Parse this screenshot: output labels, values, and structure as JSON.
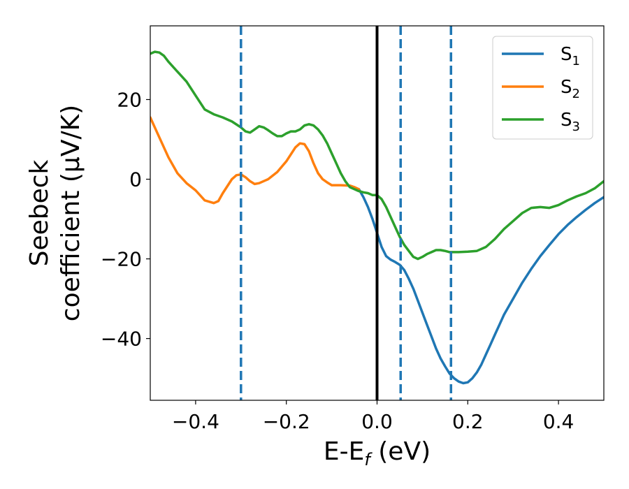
{
  "chart_data": {
    "type": "line",
    "xlabel": "E-E",
    "xlabel_sub": "f",
    "xlabel_unit": " (eV)",
    "ylabel_line1": "Seebeck",
    "ylabel_line2": "coefficient  (μV/K)",
    "xlim": [
      -0.5,
      0.5
    ],
    "ylim": [
      -55.5,
      38.5
    ],
    "xticks": [
      -0.4,
      -0.2,
      0.0,
      0.2,
      0.4
    ],
    "xtick_labels": [
      "−0.4",
      "−0.2",
      "0.0",
      "0.2",
      "0.4"
    ],
    "yticks": [
      -40,
      -20,
      0,
      20
    ],
    "ytick_labels": [
      "−40",
      "−20",
      "0",
      "20"
    ],
    "grid": false,
    "legend_position": "top-right",
    "fermi_line_x": 0.0,
    "dashed_lines_x": [
      -0.3,
      0.052,
      0.163
    ],
    "series": [
      {
        "name": "S",
        "name_sub": "1",
        "color": "#1f77b4",
        "x": [
          -0.04,
          -0.03,
          -0.02,
          -0.01,
          0.0,
          0.01,
          0.02,
          0.03,
          0.04,
          0.05,
          0.06,
          0.07,
          0.08,
          0.09,
          0.1,
          0.11,
          0.12,
          0.13,
          0.14,
          0.15,
          0.16,
          0.17,
          0.18,
          0.19,
          0.2,
          0.21,
          0.22,
          0.23,
          0.24,
          0.25,
          0.26,
          0.27,
          0.28,
          0.3,
          0.32,
          0.34,
          0.36,
          0.38,
          0.4,
          0.42,
          0.44,
          0.46,
          0.48,
          0.5
        ],
        "y": [
          -2.5,
          -4.5,
          -7.0,
          -10.0,
          -13.5,
          -17.0,
          -19.3,
          -20.2,
          -20.8,
          -21.5,
          -22.8,
          -25.0,
          -27.5,
          -30.5,
          -33.5,
          -36.5,
          -39.5,
          -42.5,
          -45.0,
          -47.0,
          -48.8,
          -50.0,
          -50.8,
          -51.2,
          -51.0,
          -50.0,
          -48.5,
          -46.5,
          -44.0,
          -41.5,
          -39.0,
          -36.5,
          -34.0,
          -30.0,
          -26.0,
          -22.5,
          -19.3,
          -16.5,
          -13.8,
          -11.5,
          -9.5,
          -7.7,
          -6.0,
          -4.5
        ]
      },
      {
        "name": "S",
        "name_sub": "2",
        "color": "#ff7f0e",
        "x": [
          -0.5,
          -0.48,
          -0.46,
          -0.44,
          -0.42,
          -0.4,
          -0.38,
          -0.36,
          -0.35,
          -0.34,
          -0.32,
          -0.31,
          -0.3,
          -0.29,
          -0.28,
          -0.27,
          -0.26,
          -0.24,
          -0.22,
          -0.2,
          -0.18,
          -0.17,
          -0.16,
          -0.15,
          -0.14,
          -0.13,
          -0.12,
          -0.11,
          -0.1,
          -0.09,
          -0.08,
          -0.06,
          -0.05,
          -0.04
        ],
        "y": [
          15.5,
          10.5,
          5.5,
          1.5,
          -1.0,
          -2.8,
          -5.3,
          -6.0,
          -5.5,
          -3.5,
          0.0,
          1.0,
          1.2,
          0.5,
          -0.5,
          -1.2,
          -1.0,
          0.0,
          1.8,
          4.5,
          8.0,
          9.0,
          8.8,
          7.0,
          4.0,
          1.5,
          0.0,
          -0.8,
          -1.5,
          -1.5,
          -1.5,
          -1.6,
          -2.0,
          -2.5
        ]
      },
      {
        "name": "S",
        "name_sub": "3",
        "color": "#2ca02c",
        "x": [
          -0.5,
          -0.49,
          -0.48,
          -0.47,
          -0.46,
          -0.44,
          -0.42,
          -0.4,
          -0.38,
          -0.36,
          -0.34,
          -0.32,
          -0.3,
          -0.29,
          -0.28,
          -0.27,
          -0.26,
          -0.25,
          -0.24,
          -0.23,
          -0.22,
          -0.21,
          -0.2,
          -0.19,
          -0.18,
          -0.17,
          -0.16,
          -0.15,
          -0.14,
          -0.13,
          -0.12,
          -0.11,
          -0.1,
          -0.09,
          -0.08,
          -0.07,
          -0.06,
          -0.05,
          -0.04,
          -0.03,
          -0.02,
          -0.01,
          0.0,
          0.01,
          0.02,
          0.03,
          0.04,
          0.05,
          0.06,
          0.07,
          0.08,
          0.09,
          0.1,
          0.11,
          0.12,
          0.13,
          0.14,
          0.15,
          0.16,
          0.18,
          0.2,
          0.22,
          0.24,
          0.26,
          0.28,
          0.3,
          0.32,
          0.34,
          0.36,
          0.38,
          0.4,
          0.42,
          0.44,
          0.46,
          0.48,
          0.5
        ],
        "y": [
          31.5,
          32.0,
          31.8,
          31.0,
          29.5,
          27.0,
          24.5,
          21.0,
          17.5,
          16.3,
          15.5,
          14.5,
          13.0,
          12.0,
          11.7,
          12.5,
          13.3,
          13.0,
          12.3,
          11.5,
          10.8,
          10.8,
          11.5,
          12.0,
          12.0,
          12.5,
          13.5,
          13.8,
          13.5,
          12.5,
          11.0,
          9.0,
          6.5,
          4.0,
          1.5,
          -0.5,
          -2.0,
          -2.5,
          -3.0,
          -3.3,
          -3.5,
          -4.0,
          -4.0,
          -5.0,
          -7.0,
          -9.5,
          -12.0,
          -14.5,
          -16.5,
          -18.0,
          -19.5,
          -20.0,
          -19.5,
          -18.8,
          -18.3,
          -17.8,
          -17.8,
          -18.0,
          -18.3,
          -18.3,
          -18.2,
          -18.0,
          -17.0,
          -15.0,
          -12.5,
          -10.5,
          -8.5,
          -7.2,
          -7.0,
          -7.2,
          -6.5,
          -5.3,
          -4.3,
          -3.5,
          -2.3,
          -0.5
        ]
      }
    ]
  }
}
